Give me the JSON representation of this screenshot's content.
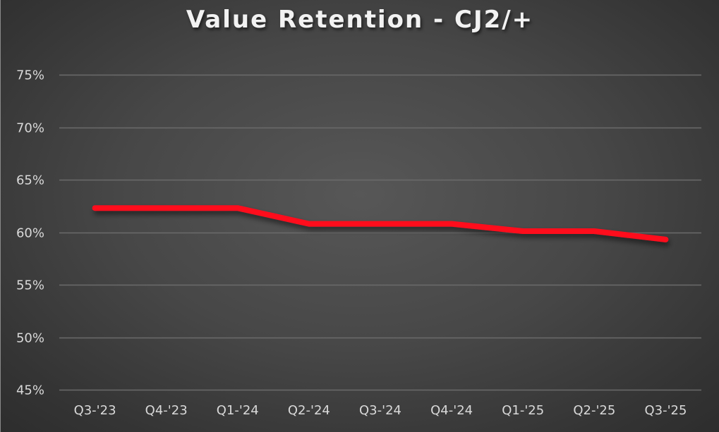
{
  "chart_data": {
    "type": "line",
    "title": "Value Retention - CJ2/+",
    "xlabel": "",
    "ylabel": "",
    "categories": [
      "Q3-'23",
      "Q4-'23",
      "Q1-'24",
      "Q2-'24",
      "Q3-'24",
      "Q4-'24",
      "Q1-'25",
      "Q2-'25",
      "Q3-'25"
    ],
    "series": [
      {
        "name": "CJ2/+",
        "color": "#ff0a1e",
        "values": [
          62.3,
          62.3,
          62.3,
          60.8,
          60.8,
          60.8,
          60.1,
          60.1,
          59.3
        ]
      }
    ],
    "ylim": [
      45,
      75
    ],
    "yticks": [
      75,
      70,
      65,
      60,
      55,
      50,
      45
    ],
    "ytick_labels": [
      "75%",
      "70%",
      "65%",
      "60%",
      "55%",
      "50%",
      "45%"
    ],
    "grid": true,
    "legend": "none",
    "background": "#474747"
  }
}
